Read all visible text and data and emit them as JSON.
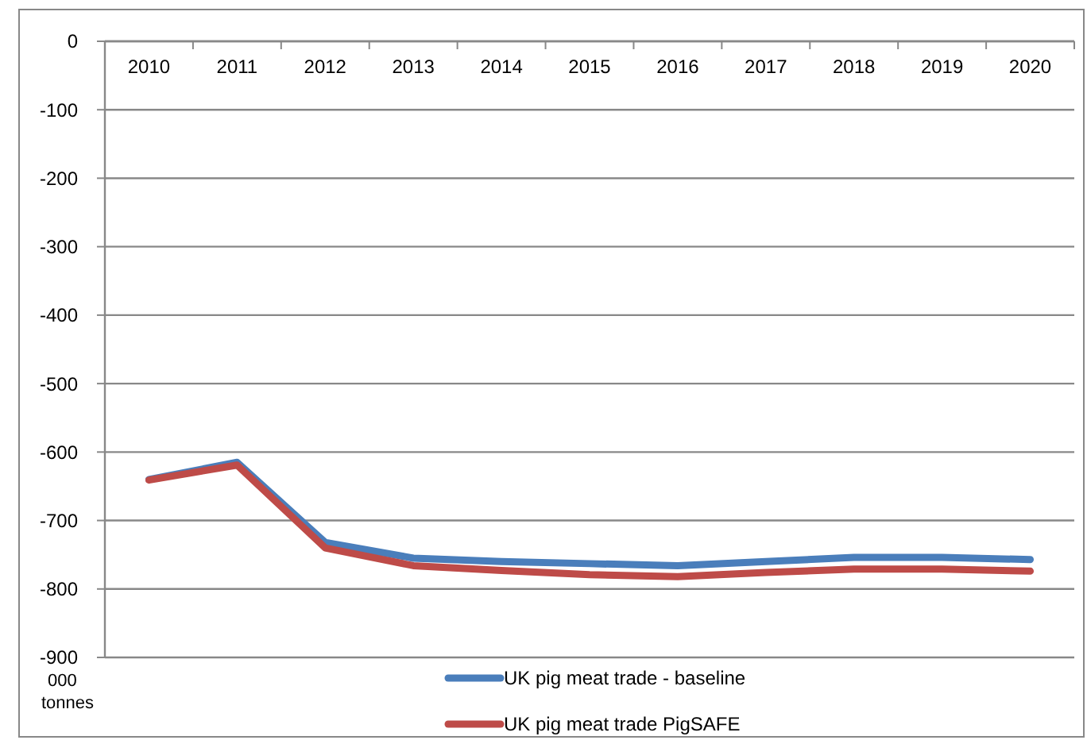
{
  "chart_data": {
    "type": "line",
    "ylabel": "000 tonnes",
    "categories": [
      "2010",
      "2011",
      "2012",
      "2013",
      "2014",
      "2015",
      "2016",
      "2017",
      "2018",
      "2019",
      "2020"
    ],
    "series": [
      {
        "name": "UK pig meat trade - baseline",
        "color": "#4a7ebb",
        "values": [
          -640,
          -615,
          -732,
          -755,
          -760,
          -763,
          -766,
          -760,
          -754,
          -754,
          -757
        ]
      },
      {
        "name": "UK pig meat trade PigSAFE",
        "color": "#be4b48",
        "values": [
          -641,
          -619,
          -740,
          -766,
          -773,
          -779,
          -782,
          -776,
          -771,
          -771,
          -774
        ]
      }
    ],
    "ylim": [
      -900,
      0
    ],
    "yticks": [
      -900,
      -800,
      -700,
      -600,
      -500,
      -400,
      -300,
      -200,
      -100,
      0
    ],
    "grid": "y",
    "legend": "bottom",
    "marker": "none",
    "line_style": "solid"
  }
}
